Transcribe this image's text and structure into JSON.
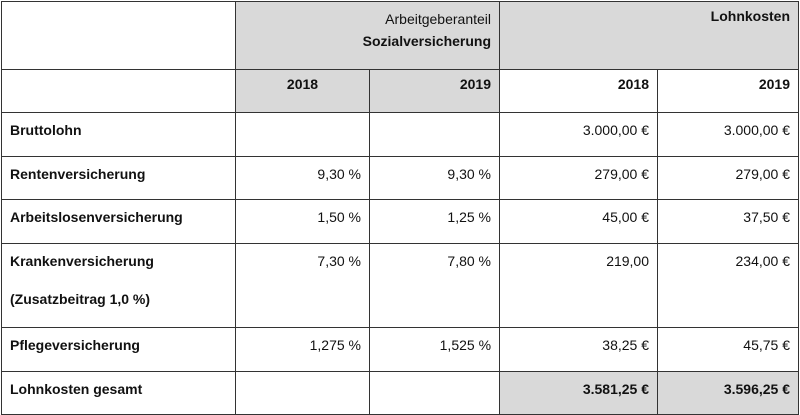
{
  "header": {
    "group1_line1": "Arbeitgeberanteil",
    "group1_line2": "Sozialversicherung",
    "group2": "Lohnkosten",
    "years": [
      "2018",
      "2019",
      "2018",
      "2019"
    ]
  },
  "rows": [
    {
      "label": "Bruttolohn",
      "ag2018": "",
      "ag2019": "",
      "lk2018": "3.000,00 €",
      "lk2019": "3.000,00 €"
    },
    {
      "label": "Rentenversicherung",
      "ag2018": "9,30 %",
      "ag2019": "9,30 %",
      "lk2018": "279,00 €",
      "lk2019": "279,00 €"
    },
    {
      "label": "Arbeitslosenversicherung",
      "ag2018": "1,50 %",
      "ag2019": "1,25 %",
      "lk2018": "45,00 €",
      "lk2019": "37,50 €"
    },
    {
      "label": "Krankenversicherung",
      "note": "(Zusatzbeitrag 1,0 %)",
      "ag2018": "7,30 %",
      "ag2019": "7,80 %",
      "lk2018": "219,00",
      "lk2019": "234,00 €"
    },
    {
      "label": "Pflegeversicherung",
      "ag2018": "1,275 %",
      "ag2019": "1,525 %",
      "lk2018": "38,25 €",
      "lk2019": "45,75 €"
    },
    {
      "label": "Lohnkosten gesamt",
      "ag2018": "",
      "ag2019": "",
      "lk2018": "3.581,25 €",
      "lk2019": "3.596,25 €"
    }
  ]
}
